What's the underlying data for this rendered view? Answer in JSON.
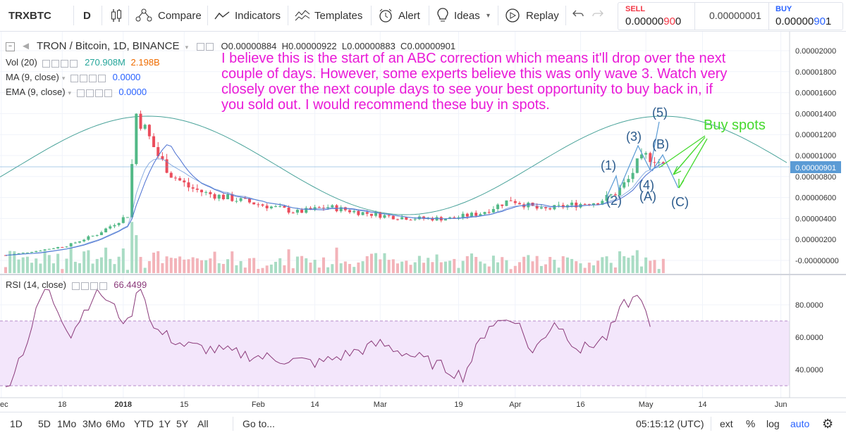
{
  "toolbar": {
    "symbol": "TRXBTC",
    "interval": "D",
    "compare": "Compare",
    "indicators": "Indicators",
    "templates": "Templates",
    "alert": "Alert",
    "ideas": "Ideas",
    "replay": "Replay"
  },
  "trade": {
    "sell_label": "SELL",
    "sell_price_main": "0.00000",
    "sell_price_big": "90",
    "sell_price_end": "0",
    "spread": "0.00000001",
    "buy_label": "BUY",
    "buy_price_main": "0.00000",
    "buy_price_big": "90",
    "buy_price_end": "1",
    "sell_color": "#f23645",
    "buy_color": "#2962ff"
  },
  "legend": {
    "title": "TRON / Bitcoin, 1D, BINANCE",
    "o_label": "O",
    "o": "0.00000884",
    "h_label": "H",
    "h": "0.00000922",
    "l_label": "L",
    "l": "0.00000883",
    "c_label": "C",
    "c": "0.00000901",
    "vol_label": "Vol (20)",
    "vol1": "270.908M",
    "vol2": "2.198B",
    "ma_label": "MA (9, close)",
    "ma_val": "0.0000",
    "ema_label": "EMA (9, close)",
    "ema_val": "0.0000",
    "rsi_label": "RSI (14, close)",
    "rsi_val": "66.4499"
  },
  "annotation": "I believe this is the start of an ABC correction which means it'll drop over the next couple of days. However, some experts believe this was only wave 3. Watch very closely over the next couple days to see your best opportunity to buy back in, if you sold out. I would recommend these buy in spots.",
  "buy_spots": "Buy spots",
  "waves": [
    "(1)",
    "(2)",
    "(3)",
    "(4)",
    "(5)",
    "(A)",
    "(B)",
    "(C)"
  ],
  "price_axis": [
    "0.00002000",
    "0.00001800",
    "0.00001600",
    "0.00001400",
    "0.00001200",
    "0.00001000",
    "0.00000800",
    "0.00000600",
    "0.00000400",
    "0.00000200",
    "-0.00000000"
  ],
  "current_price": "0.00000901",
  "rsi_axis": [
    "80.0000",
    "60.0000",
    "40.0000"
  ],
  "time_axis": [
    "Dec",
    "18",
    "2018",
    "15",
    "Feb",
    "14",
    "Mar",
    "19",
    "Apr",
    "16",
    "May",
    "14",
    "Jun"
  ],
  "bottom": {
    "ranges": [
      "1D",
      "5D",
      "1Mo",
      "3Mo",
      "6Mo",
      "YTD",
      "1Y",
      "5Y",
      "All"
    ],
    "goto": "Go to...",
    "time": "05:15:12 (UTC)",
    "ext": "ext",
    "pct": "%",
    "log": "log",
    "auto": "auto"
  },
  "colors": {
    "up": "#53b987",
    "down": "#eb4d5c",
    "annotation": "#e91ad7",
    "buy_spots": "#46d92e",
    "wave_label": "#2a5a8c",
    "rsi_band": "#f3e6fb",
    "rsi_line": "#8a3a7a",
    "cycle": "#4aa39a"
  },
  "chart_data": {
    "type": "candlestick",
    "title": "TRON / Bitcoin, 1D, BINANCE",
    "x_range": [
      "2017-12-05",
      "2018-06-03"
    ],
    "y_range": [
      0,
      2.1e-05
    ],
    "close_series": {
      "x": [
        "2017-12-05",
        "2017-12-12",
        "2017-12-19",
        "2017-12-26",
        "2018-01-02",
        "2018-01-04",
        "2018-01-06",
        "2018-01-09",
        "2018-01-12",
        "2018-01-16",
        "2018-01-20",
        "2018-01-27",
        "2018-02-03",
        "2018-02-10",
        "2018-02-17",
        "2018-02-24",
        "2018-03-03",
        "2018-03-10",
        "2018-03-17",
        "2018-03-24",
        "2018-03-31",
        "2018-04-07",
        "2018-04-14",
        "2018-04-20",
        "2018-04-24",
        "2018-04-27",
        "2018-04-29",
        "2018-05-01",
        "2018-05-03",
        "2018-05-05"
      ],
      "y": [
        5e-07,
        9e-07,
        1.4e-06,
        2.5e-06,
        4.3e-06,
        1.4e-05,
        1.25e-05,
        1e-05,
        8.2e-06,
        7e-06,
        6.4e-06,
        5.8e-06,
        5.2e-06,
        4.6e-06,
        5.1e-06,
        4.6e-06,
        4.2e-06,
        4e-06,
        4e-06,
        4.5e-06,
        5.8e-06,
        4.8e-06,
        5.3e-06,
        5.6e-06,
        6.4e-06,
        7.7e-06,
        9.2e-06,
        9.9e-06,
        9.8e-06,
        9e-06
      ]
    },
    "last": {
      "open": 8.84e-06,
      "high": 9.22e-06,
      "low": 8.83e-06,
      "close": 9.01e-06
    },
    "rsi": {
      "x": [
        "2017-12-05",
        "2017-12-10",
        "2017-12-14",
        "2017-12-20",
        "2017-12-26",
        "2018-01-02",
        "2018-01-05",
        "2018-01-08",
        "2018-01-15",
        "2018-02-01",
        "2018-02-15",
        "2018-03-01",
        "2018-03-15",
        "2018-03-20",
        "2018-03-26",
        "2018-04-01",
        "2018-04-05",
        "2018-04-10",
        "2018-04-16",
        "2018-04-22",
        "2018-04-26",
        "2018-04-30",
        "2018-05-02"
      ],
      "y": [
        28,
        58,
        92,
        62,
        90,
        68,
        93,
        65,
        55,
        48,
        44,
        56,
        42,
        36,
        68,
        72,
        50,
        70,
        52,
        60,
        80,
        86,
        66.45
      ]
    }
  }
}
